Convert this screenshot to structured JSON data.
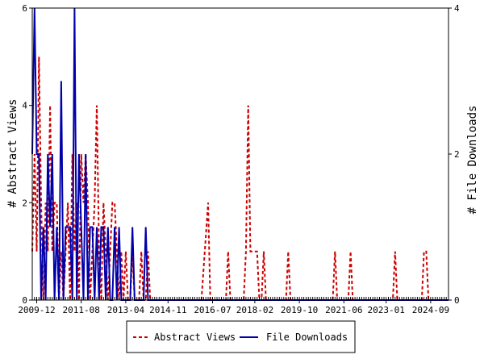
{
  "chart_data": {
    "type": "line",
    "y_left_label": "# Abstract Views",
    "y_right_label": "# File Downloads",
    "y_left_lim": [
      0,
      6
    ],
    "y_right_lim": [
      0,
      4
    ],
    "y_left_ticks": [
      "0",
      "2",
      "4",
      "6"
    ],
    "y_right_ticks": [
      "0",
      "2",
      "4"
    ],
    "x_range": [
      "2009-10",
      "2025-05"
    ],
    "x_tick_labels": [
      "2009-12",
      "2011-08",
      "2013-04",
      "2014-11",
      "2016-07",
      "2018-02",
      "2019-10",
      "2021-06",
      "2023-01",
      "2024-09"
    ],
    "grid": false,
    "legend_position": "bottom",
    "series": [
      {
        "name": "Abstract Views",
        "color": "#cc0000",
        "style": "dashed",
        "axis": "left",
        "values": [
          [
            "2009-10",
            1
          ],
          [
            "2009-11",
            3
          ],
          [
            "2009-12",
            1
          ],
          [
            "2010-01",
            5
          ],
          [
            "2010-02",
            2
          ],
          [
            "2010-03",
            0
          ],
          [
            "2010-04",
            2
          ],
          [
            "2010-05",
            1
          ],
          [
            "2010-06",
            4
          ],
          [
            "2010-07",
            1
          ],
          [
            "2010-08",
            2
          ],
          [
            "2010-09",
            2
          ],
          [
            "2010-10",
            0
          ],
          [
            "2010-11",
            1
          ],
          [
            "2010-12",
            0
          ],
          [
            "2011-01",
            1
          ],
          [
            "2011-02",
            2
          ],
          [
            "2011-03",
            0
          ],
          [
            "2011-04",
            3
          ],
          [
            "2011-05",
            1
          ],
          [
            "2011-06",
            2
          ],
          [
            "2011-07",
            0
          ],
          [
            "2011-08",
            3
          ],
          [
            "2011-09",
            2
          ],
          [
            "2011-10",
            3
          ],
          [
            "2011-11",
            2
          ],
          [
            "2011-12",
            0
          ],
          [
            "2012-01",
            1
          ],
          [
            "2012-02",
            2
          ],
          [
            "2012-03",
            4
          ],
          [
            "2012-04",
            1
          ],
          [
            "2012-05",
            0
          ],
          [
            "2012-06",
            2
          ],
          [
            "2012-07",
            1
          ],
          [
            "2012-08",
            0
          ],
          [
            "2012-09",
            1
          ],
          [
            "2012-10",
            2
          ],
          [
            "2012-11",
            2
          ],
          [
            "2012-12",
            1
          ],
          [
            "2013-01",
            0
          ],
          [
            "2013-02",
            1
          ],
          [
            "2013-03",
            0
          ],
          [
            "2013-04",
            1
          ],
          [
            "2013-05",
            0
          ],
          [
            "2013-06",
            0
          ],
          [
            "2013-07",
            1
          ],
          [
            "2013-08",
            0
          ],
          [
            "2013-09",
            0
          ],
          [
            "2013-10",
            0
          ],
          [
            "2013-11",
            1
          ],
          [
            "2013-12",
            0
          ],
          [
            "2014-01",
            0
          ],
          [
            "2014-02",
            1
          ],
          [
            "2014-03",
            0
          ],
          [
            "2016-02",
            0
          ],
          [
            "2016-05",
            2
          ],
          [
            "2016-06",
            0
          ],
          [
            "2017-01",
            0
          ],
          [
            "2017-02",
            1
          ],
          [
            "2017-03",
            0
          ],
          [
            "2017-09",
            0
          ],
          [
            "2017-10",
            1
          ],
          [
            "2017-11",
            4
          ],
          [
            "2017-12",
            1
          ],
          [
            "2018-01",
            1
          ],
          [
            "2018-02",
            1
          ],
          [
            "2018-03",
            1
          ],
          [
            "2018-04",
            0
          ],
          [
            "2018-05",
            0
          ],
          [
            "2018-06",
            1
          ],
          [
            "2018-07",
            0
          ],
          [
            "2019-04",
            0
          ],
          [
            "2019-05",
            1
          ],
          [
            "2019-06",
            0
          ],
          [
            "2021-01",
            0
          ],
          [
            "2021-02",
            1
          ],
          [
            "2021-03",
            0
          ],
          [
            "2021-08",
            0
          ],
          [
            "2021-09",
            1
          ],
          [
            "2021-10",
            0
          ],
          [
            "2023-04",
            0
          ],
          [
            "2023-05",
            1
          ],
          [
            "2023-06",
            0
          ],
          [
            "2024-05",
            0
          ],
          [
            "2024-06",
            1
          ],
          [
            "2024-07",
            1
          ],
          [
            "2024-08",
            0
          ],
          [
            "2025-05",
            0
          ]
        ]
      },
      {
        "name": "File Downloads",
        "color": "#0000aa",
        "style": "solid",
        "axis": "right",
        "values": [
          [
            "2009-10",
            2
          ],
          [
            "2009-11",
            4
          ],
          [
            "2009-12",
            2
          ],
          [
            "2010-01",
            2
          ],
          [
            "2010-02",
            0
          ],
          [
            "2010-03",
            1
          ],
          [
            "2010-04",
            0
          ],
          [
            "2010-05",
            2
          ],
          [
            "2010-06",
            1
          ],
          [
            "2010-07",
            2
          ],
          [
            "2010-08",
            0
          ],
          [
            "2010-09",
            1
          ],
          [
            "2010-10",
            0
          ],
          [
            "2010-11",
            3
          ],
          [
            "2010-12",
            0
          ],
          [
            "2011-01",
            1
          ],
          [
            "2011-02",
            1
          ],
          [
            "2011-03",
            1
          ],
          [
            "2011-04",
            0
          ],
          [
            "2011-05",
            4
          ],
          [
            "2011-06",
            0
          ],
          [
            "2011-07",
            2
          ],
          [
            "2011-08",
            1
          ],
          [
            "2011-09",
            0
          ],
          [
            "2011-10",
            2
          ],
          [
            "2011-11",
            0
          ],
          [
            "2011-12",
            1
          ],
          [
            "2012-01",
            1
          ],
          [
            "2012-02",
            0
          ],
          [
            "2012-03",
            1
          ],
          [
            "2012-04",
            0
          ],
          [
            "2012-05",
            1
          ],
          [
            "2012-06",
            1
          ],
          [
            "2012-07",
            0
          ],
          [
            "2012-08",
            1
          ],
          [
            "2012-09",
            0
          ],
          [
            "2012-10",
            0
          ],
          [
            "2012-11",
            1
          ],
          [
            "2012-12",
            0
          ],
          [
            "2013-01",
            1
          ],
          [
            "2013-02",
            0
          ],
          [
            "2013-03",
            0
          ],
          [
            "2013-04",
            0
          ],
          [
            "2013-05",
            0
          ],
          [
            "2013-06",
            0
          ],
          [
            "2013-07",
            1
          ],
          [
            "2013-08",
            0
          ],
          [
            "2013-09",
            0
          ],
          [
            "2013-10",
            0
          ],
          [
            "2013-11",
            0
          ],
          [
            "2013-12",
            0
          ],
          [
            "2014-01",
            1
          ],
          [
            "2014-02",
            0
          ],
          [
            "2014-03",
            0
          ],
          [
            "2025-05",
            0
          ]
        ]
      }
    ]
  }
}
